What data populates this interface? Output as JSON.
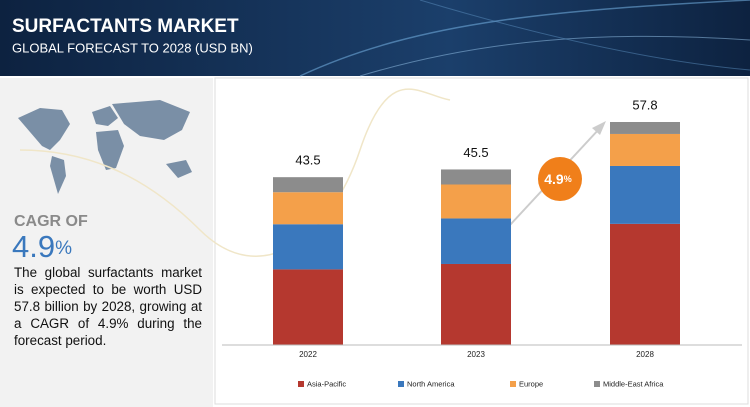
{
  "header": {
    "title": "SURFACTANTS MARKET",
    "subtitle": "GLOBAL FORECAST TO 2028 (USD BN)"
  },
  "side_panel": {
    "cagr_caption": "CAGR OF",
    "cagr": {
      "number": "4.9",
      "unit": "%"
    },
    "text": "The global surfactants market is expected to be worth USD 57.8 billion by 2028, growing at a CAGR of 4.9% during the forecast period."
  },
  "chart_data": {
    "type": "stacked_bar",
    "categories": [
      "2022",
      "2023",
      "2028"
    ],
    "series": [
      {
        "name": "Asia-Pacific",
        "color": "#b5382f",
        "values": [
          19.6,
          21.0,
          31.4
        ]
      },
      {
        "name": "North America",
        "color": "#3a78bd",
        "values": [
          11.7,
          11.8,
          15.0
        ]
      },
      {
        "name": "Europe",
        "color": "#f4a04a",
        "values": [
          8.3,
          8.8,
          8.3
        ]
      },
      {
        "name": "Middle-East Africa",
        "color": "#8c8c8c",
        "values": [
          3.9,
          3.9,
          3.1
        ]
      }
    ],
    "totals": [
      43.5,
      45.5,
      57.8
    ],
    "legend": "bottom"
  }
}
